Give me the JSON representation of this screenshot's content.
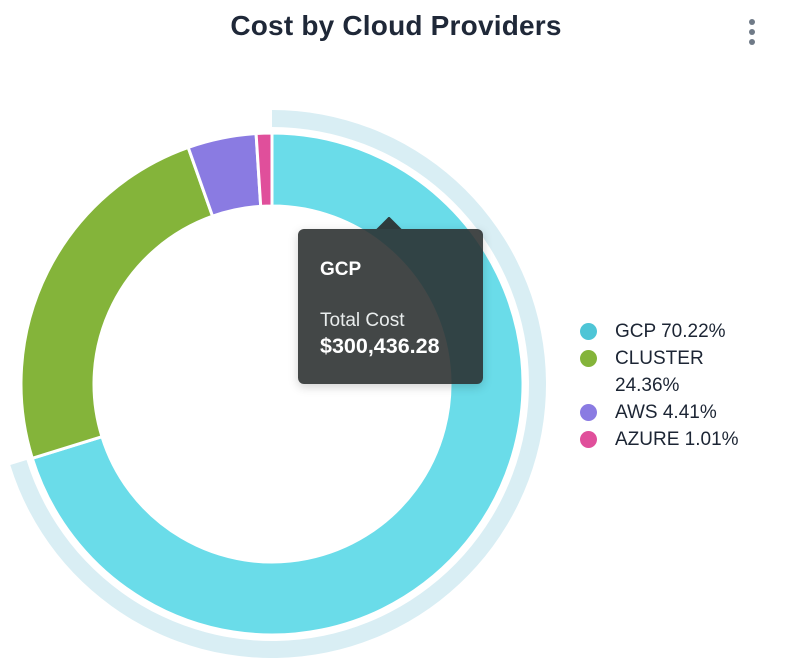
{
  "header": {
    "title": "Cost by Cloud Providers",
    "menu_icon": "kebab-menu-icon"
  },
  "chart_data": {
    "type": "pie",
    "subtype": "donut",
    "title": "Cost by Cloud Providers",
    "legend_position": "right",
    "start_angle_deg": 0,
    "direction": "clockwise",
    "segments": [
      {
        "label": "GCP",
        "percent": 70.22,
        "color": "#4ec5d6",
        "hover_color": "#6adce9",
        "legend_text": "GCP 70.22%",
        "state": "hovered"
      },
      {
        "label": "CLUSTER",
        "percent": 24.36,
        "color": "#84b43a",
        "legend_text": "CLUSTER 24.36%",
        "state": "normal"
      },
      {
        "label": "AWS",
        "percent": 4.41,
        "color": "#8a7be2",
        "legend_text": "AWS 4.41%",
        "state": "normal"
      },
      {
        "label": "AZURE",
        "percent": 1.01,
        "color": "#e04f9b",
        "legend_text": "AZURE 1.01%",
        "state": "normal"
      }
    ],
    "hover_halo_color": "#d9eef4",
    "slice_border_color": "#ffffff"
  },
  "tooltip": {
    "series": "GCP",
    "label": "Total Cost",
    "value": "$300,436.28"
  }
}
